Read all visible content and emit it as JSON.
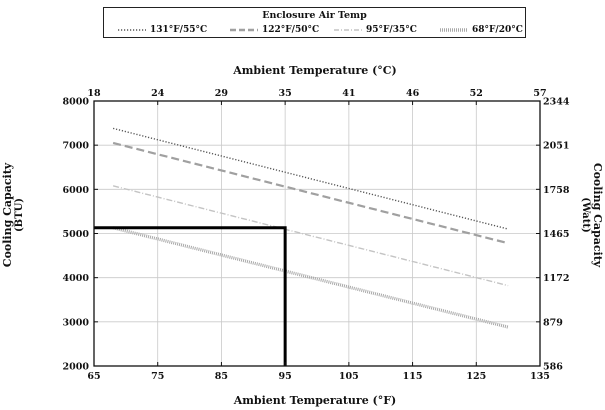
{
  "chart_data": {
    "type": "line",
    "legend": {
      "title": "Enclosure Air Temp",
      "position": "top-center"
    },
    "x_bottom": {
      "label": "Ambient Temperature (°F)",
      "range": [
        65,
        135
      ],
      "ticks": [
        "65",
        "75",
        "85",
        "95",
        "105",
        "115",
        "125",
        "135"
      ]
    },
    "x_top": {
      "label": "Ambient Temperature (°C)",
      "ticks": [
        "18",
        "24",
        "29",
        "35",
        "41",
        "46",
        "52",
        "57"
      ]
    },
    "y_left": {
      "label": "Cooling Capacity",
      "unit": "(BTU)",
      "range": [
        2000,
        8000
      ],
      "ticks": [
        "8000",
        "7000",
        "6000",
        "5000",
        "4000",
        "3000",
        "2000"
      ]
    },
    "y_right": {
      "label": "Cooling Capacity",
      "unit": "(Watt)",
      "ticks": [
        "2344",
        "2051",
        "1758",
        "1465",
        "1172",
        "879",
        "586"
      ]
    },
    "grid": true,
    "series": [
      {
        "name": "131°F/55°C",
        "x": [
          68,
          130
        ],
        "values": [
          7380,
          5100
        ],
        "color": "#555555",
        "style": "dotted"
      },
      {
        "name": "122°F/50°C",
        "x": [
          68,
          130
        ],
        "values": [
          7050,
          4780
        ],
        "color": "#a0a0a0",
        "style": "dashed"
      },
      {
        "name": "95°F/35°C",
        "x": [
          68,
          130
        ],
        "values": [
          6080,
          3820
        ],
        "color": "#c4c4c4",
        "style": "dash-dot"
      },
      {
        "name": "68°F/20°C",
        "x": [
          68,
          130
        ],
        "values": [
          5130,
          2880
        ],
        "color": "#a8a8a8",
        "style": "dense-dotted"
      }
    ],
    "annotation": {
      "description": "guide lines",
      "x": 95,
      "y": 5130,
      "color": "#000000"
    }
  }
}
